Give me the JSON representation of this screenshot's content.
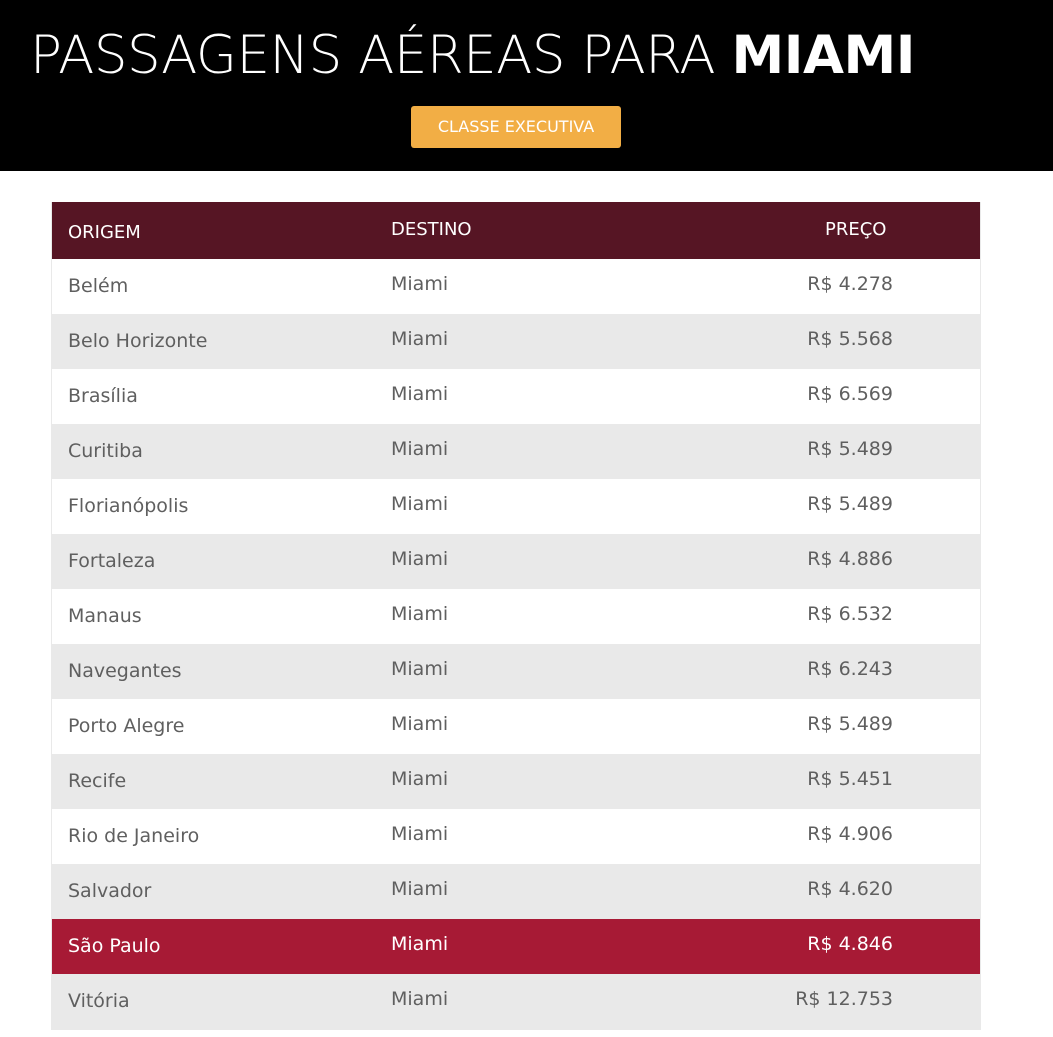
{
  "header": {
    "title_light": "PASSAGENS AÉREAS PARA ",
    "title_bold": "MIAMI",
    "button_label": "CLASSE EXECUTIVA"
  },
  "table": {
    "columns": [
      "ORIGEM",
      "DESTINO",
      "PREÇO"
    ],
    "rows": [
      {
        "origem": "Belém",
        "destino": "Miami",
        "preco": "R$ 4.278"
      },
      {
        "origem": "Belo Horizonte",
        "destino": "Miami",
        "preco": "R$ 5.568"
      },
      {
        "origem": "Brasília",
        "destino": "Miami",
        "preco": "R$ 6.569"
      },
      {
        "origem": "Curitiba",
        "destino": "Miami",
        "preco": "R$ 5.489"
      },
      {
        "origem": "Florianópolis",
        "destino": "Miami",
        "preco": "R$ 5.489"
      },
      {
        "origem": "Fortaleza",
        "destino": "Miami",
        "preco": "R$ 4.886"
      },
      {
        "origem": "Manaus",
        "destino": "Miami",
        "preco": "R$ 6.532"
      },
      {
        "origem": "Navegantes",
        "destino": "Miami",
        "preco": "R$ 6.243"
      },
      {
        "origem": "Porto Alegre",
        "destino": "Miami",
        "preco": "R$ 5.489"
      },
      {
        "origem": "Recife",
        "destino": "Miami",
        "preco": "R$ 5.451"
      },
      {
        "origem": "Rio de Janeiro",
        "destino": "Miami",
        "preco": "R$ 4.906"
      },
      {
        "origem": "Salvador",
        "destino": "Miami",
        "preco": "R$ 4.620"
      },
      {
        "origem": "São Paulo",
        "destino": "Miami",
        "preco": "R$ 4.846",
        "highlighted": true
      },
      {
        "origem": "Vitória",
        "destino": "Miami",
        "preco": "R$ 12.753"
      }
    ]
  },
  "colors": {
    "header_bg": "#000000",
    "button_bg": "#f2ae45",
    "table_header_bg": "#561524",
    "highlight_row_bg": "#a71a35",
    "alt_row_bg": "#e9e9e9"
  }
}
